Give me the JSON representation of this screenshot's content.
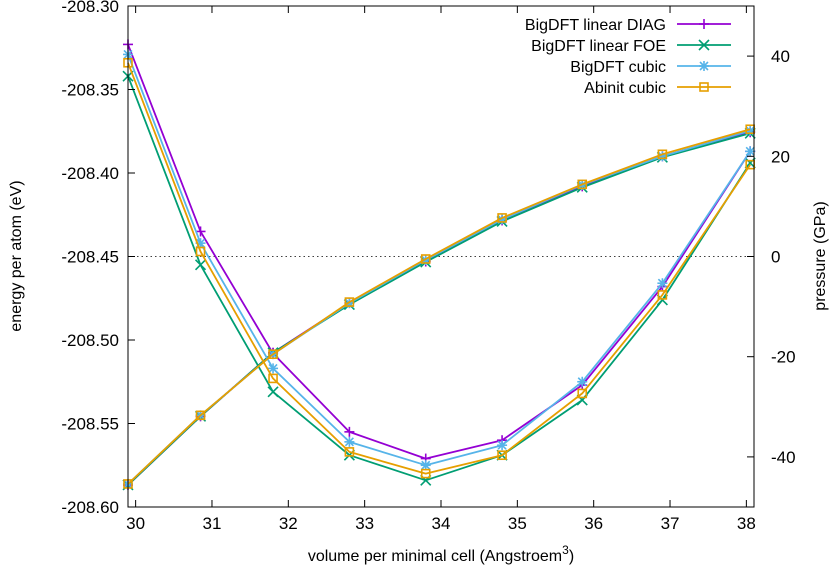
{
  "chart_data": {
    "type": "line",
    "xlabel": "volume per minimal cell (Angstroem",
    "xlabel_sup": "3",
    "xlabel_suffix": ")",
    "ylabel_left": "energy per atom (eV)",
    "ylabel_right": "pressure (GPa)",
    "xlim": [
      29.9,
      38.1
    ],
    "ylim_left": [
      -208.6,
      -208.3
    ],
    "ylim_right": [
      -50,
      50
    ],
    "x_ticks": [
      30,
      31,
      32,
      33,
      34,
      35,
      36,
      37,
      38
    ],
    "y_left_ticks": [
      "-208.30",
      "-208.35",
      "-208.40",
      "-208.45",
      "-208.50",
      "-208.55",
      "-208.60"
    ],
    "y_right_ticks": [
      40,
      20,
      0,
      -20,
      -40
    ],
    "zero_line": "pressure = 0 (dotted)",
    "legend_position": "top-right",
    "x": [
      29.9,
      30.85,
      31.8,
      32.8,
      33.8,
      34.8,
      35.85,
      36.9,
      38.05
    ],
    "series": [
      {
        "name": "BigDFT linear DIAG",
        "color": "#9400d3",
        "marker": "plus",
        "energy": [
          -208.323,
          -208.435,
          -208.508,
          -208.555,
          -208.571,
          -208.56,
          -208.527,
          -208.468,
          -208.387
        ],
        "pressure": [
          -45.6,
          -31.9,
          -19.2,
          -9.3,
          -1.0,
          7.2,
          14.0,
          20.0,
          24.8
        ]
      },
      {
        "name": "BigDFT linear FOE",
        "color": "#009e73",
        "marker": "cross",
        "energy": [
          -208.342,
          -208.455,
          -208.531,
          -208.569,
          -208.584,
          -208.569,
          -208.536,
          -208.476,
          -208.394
        ],
        "pressure": [
          -45.6,
          -31.9,
          -19.2,
          -9.6,
          -1.1,
          7.0,
          13.8,
          19.8,
          24.6
        ]
      },
      {
        "name": "BigDFT cubic",
        "color": "#56b4e9",
        "marker": "asterisk",
        "energy": [
          -208.329,
          -208.442,
          -208.517,
          -208.561,
          -208.575,
          -208.563,
          -208.525,
          -208.466,
          -208.387
        ],
        "pressure": [
          -45.4,
          -31.7,
          -19.5,
          -9.3,
          -0.7,
          7.4,
          14.3,
          20.0,
          25.1
        ]
      },
      {
        "name": "Abinit cubic",
        "color": "#e69f00",
        "marker": "square",
        "energy": [
          -208.334,
          -208.447,
          -208.523,
          -208.567,
          -208.58,
          -208.569,
          -208.532,
          -208.473,
          -208.395
        ],
        "pressure": [
          -45.4,
          -31.7,
          -19.5,
          -9.1,
          -0.5,
          7.7,
          14.4,
          20.4,
          25.4
        ]
      }
    ]
  }
}
